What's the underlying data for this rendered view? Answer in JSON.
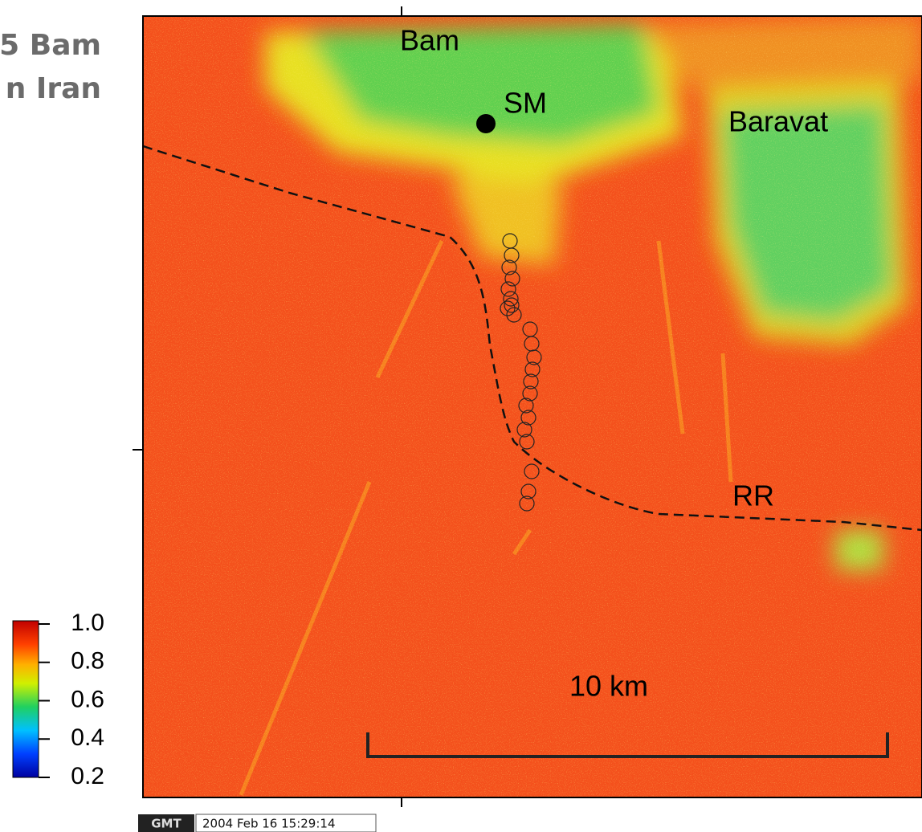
{
  "title": {
    "lines": [
      "5 Bam",
      "n Iran"
    ]
  },
  "map": {
    "labels": {
      "bam": "Bam",
      "sm": "SM",
      "baravat": "Baravat",
      "rr": "RR"
    },
    "scale_bar": "10 km"
  },
  "colorbar": {
    "lim": [
      0.2,
      1.0
    ],
    "ticks": [
      {
        "value": 1.0,
        "label": "1.0"
      },
      {
        "value": 0.8,
        "label": "0.8"
      },
      {
        "value": 0.6,
        "label": "0.6"
      },
      {
        "value": 0.4,
        "label": "0.4"
      },
      {
        "value": 0.2,
        "label": "0.2"
      }
    ]
  },
  "footer": {
    "logo": "GMT",
    "timestamp": "2004 Feb 16 15:29:14"
  }
}
